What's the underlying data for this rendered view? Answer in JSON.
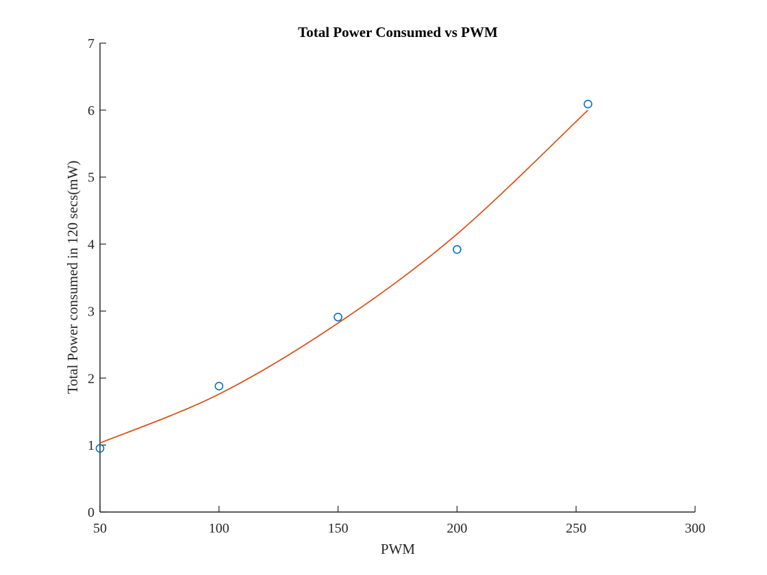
{
  "chart_data": {
    "type": "scatter",
    "title": "Total Power Consumed vs PWM",
    "xlabel": "PWM",
    "ylabel": "Total Power consumed in 120 secs(mW)",
    "xlim": [
      50,
      300
    ],
    "ylim": [
      0,
      7
    ],
    "xticks": [
      50,
      100,
      150,
      200,
      250,
      300
    ],
    "yticks": [
      0,
      1,
      2,
      3,
      4,
      5,
      6,
      7
    ],
    "grid": false,
    "series": [
      {
        "kind": "markers",
        "marker": "circle-open",
        "color": "#0072BD",
        "x": [
          50,
          100,
          150,
          200,
          255
        ],
        "y": [
          0.95,
          1.88,
          2.91,
          3.92,
          6.09
        ]
      },
      {
        "kind": "fit-line",
        "color": "#D95319",
        "x": [
          50,
          100,
          150,
          200,
          255
        ],
        "y": [
          1.03,
          1.76,
          2.82,
          4.15,
          6.0
        ]
      }
    ]
  }
}
